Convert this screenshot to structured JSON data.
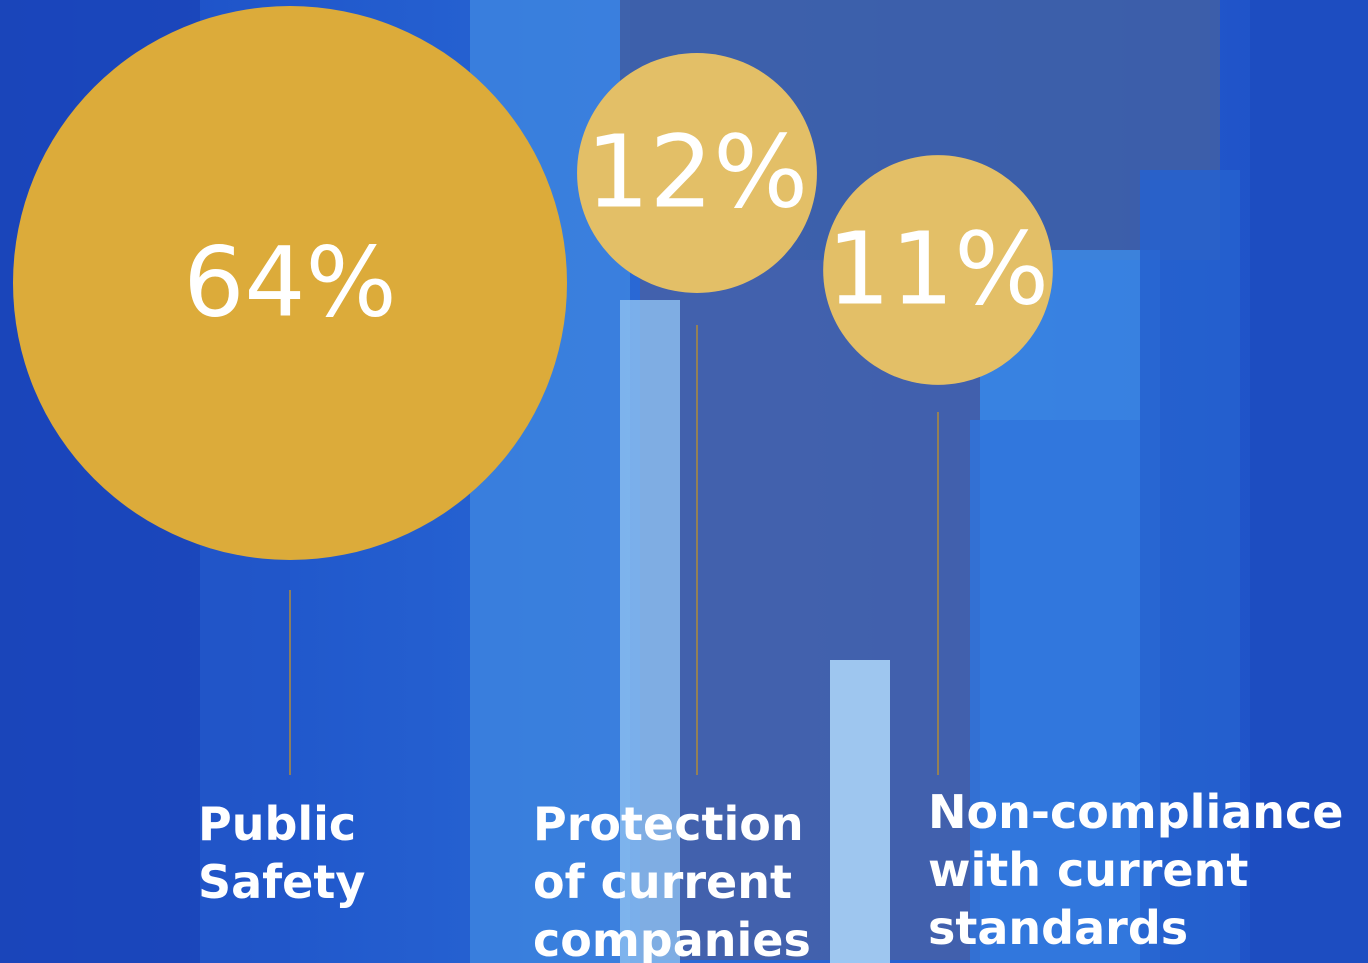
{
  "chart_data": {
    "type": "bubble",
    "categories": [
      "Public Safety",
      "Protection of current companies",
      "Non-compliance with current standards"
    ],
    "values": [
      64,
      12,
      11
    ],
    "value_labels": [
      "64%",
      "12%",
      "11%"
    ],
    "colors": [
      "#dcab3a",
      "#e3bf67",
      "#e3bf67"
    ]
  }
}
